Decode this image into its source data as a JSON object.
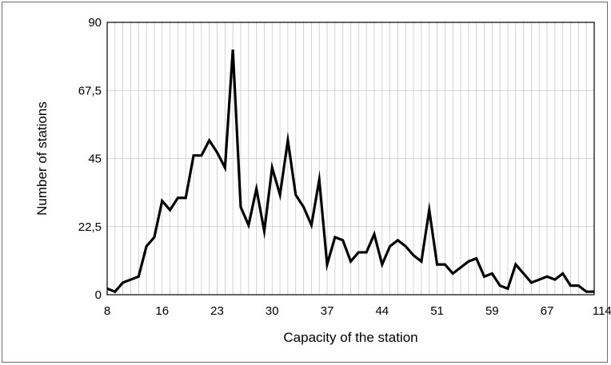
{
  "chart_data": {
    "type": "line",
    "xlabel": "Capacity of the station",
    "ylabel": "Number of stations",
    "ylim": [
      0,
      90
    ],
    "y_ticks": [
      "0",
      "22,5",
      "45",
      "67,5",
      "90"
    ],
    "y_tick_values": [
      0,
      22.5,
      45,
      67.5,
      90
    ],
    "x_tick_labels": [
      "8",
      "16",
      "23",
      "30",
      "37",
      "44",
      "51",
      "59",
      "67",
      "114"
    ],
    "x_tick_indices": [
      0,
      7,
      14,
      21,
      28,
      35,
      42,
      49,
      56,
      63
    ],
    "grid": "vertical",
    "line_color": "#000000",
    "series": [
      {
        "values": [
          2,
          1,
          4,
          5,
          6,
          16,
          19,
          31,
          28,
          32,
          32,
          46,
          46,
          51,
          47,
          42,
          81,
          29,
          23,
          35,
          21,
          42,
          33,
          51,
          33,
          29,
          23,
          38,
          10,
          19,
          18,
          11,
          14,
          14,
          20,
          10,
          16,
          18,
          16,
          13,
          11,
          28,
          10,
          10,
          7,
          9,
          11,
          12,
          6,
          7,
          3,
          2,
          10,
          7,
          4,
          5,
          6,
          5,
          7,
          3,
          3,
          1,
          1
        ]
      }
    ]
  }
}
